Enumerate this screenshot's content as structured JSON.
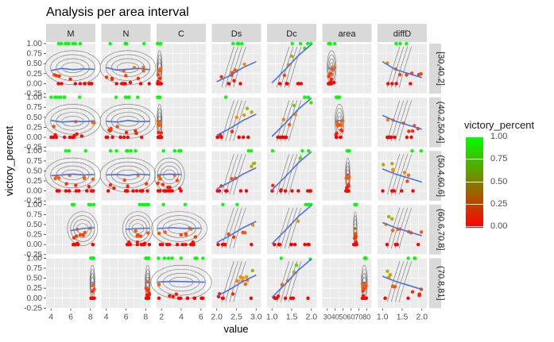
{
  "chart_data": {
    "type": "scatter",
    "title": "Analysis per area interval",
    "xlabel": "value",
    "ylabel": "victory_percent",
    "columns": [
      "M",
      "N",
      "C",
      "Ds",
      "Dc",
      "area",
      "diffD"
    ],
    "rows": [
      "[30,40.2]",
      "(40.2,50.4]",
      "(50.4,60.6]",
      "(60.6,70.8]",
      "(70.8,81]"
    ],
    "ylim": [
      -0.25,
      1.0
    ],
    "y_ticks": [
      "1.00",
      "0.75",
      "0.50",
      "0.25",
      "0.00",
      "-0.25"
    ],
    "x_axes": [
      {
        "column": "M",
        "ticks": [
          "4",
          "6",
          "8"
        ]
      },
      {
        "column": "N",
        "ticks": [
          "4",
          "6",
          "8"
        ]
      },
      {
        "column": "C",
        "ticks": [
          "2",
          "4",
          "6"
        ]
      },
      {
        "column": "Ds",
        "ticks": [
          "2.0",
          "2.5",
          "3.0"
        ]
      },
      {
        "column": "Dc",
        "ticks": [
          "1.0",
          "1.5",
          "2.0"
        ]
      },
      {
        "column": "area",
        "ticks": [
          "30",
          "40",
          "50",
          "60",
          "70",
          "80"
        ]
      },
      {
        "column": "diffD",
        "ticks": [
          "1.0",
          "1.5",
          "2.0"
        ]
      }
    ],
    "panels": [
      {
        "row": "[30,40.2]",
        "column": "M",
        "x_min": 4,
        "x_max": 9,
        "trend": [
          0.33,
          0.38,
          0.35,
          0.37,
          0.36
        ]
      },
      {
        "row": "[30,40.2]",
        "column": "N",
        "x_min": 4,
        "x_max": 9,
        "trend": [
          0.4,
          0.34,
          0.36,
          0.38,
          0.35
        ]
      },
      {
        "row": "[30,40.2]",
        "column": "C",
        "x_min": 1,
        "x_max": 2,
        "trend": []
      },
      {
        "row": "[30,40.2]",
        "column": "Ds",
        "x_min": 2.0,
        "x_max": 3.0,
        "trend": [
          0.05,
          0.2,
          0.4,
          0.55
        ]
      },
      {
        "row": "[30,40.2]",
        "column": "Dc",
        "x_min": 1.0,
        "x_max": 2.0,
        "trend": [
          0.02,
          0.35,
          0.7,
          0.98
        ]
      },
      {
        "row": "[30,40.2]",
        "column": "area",
        "x_min": 31,
        "x_max": 40,
        "trend": [
          0.4,
          0.36,
          0.38
        ]
      },
      {
        "row": "[30,40.2]",
        "column": "diffD",
        "x_min": 1.0,
        "x_max": 2.0,
        "trend": [
          0.55,
          0.35,
          0.25,
          0.15
        ]
      },
      {
        "row": "(40.2,50.4]",
        "column": "M",
        "x_min": 4,
        "x_max": 9,
        "trend": [
          0.42,
          0.38,
          0.4,
          0.39,
          0.41
        ]
      },
      {
        "row": "(40.2,50.4]",
        "column": "N",
        "x_min": 4,
        "x_max": 9,
        "trend": [
          0.4,
          0.38,
          0.42,
          0.39,
          0.4
        ]
      },
      {
        "row": "(40.2,50.4]",
        "column": "C",
        "x_min": 1,
        "x_max": 2,
        "trend": [
          0.4,
          0.42
        ]
      },
      {
        "row": "(40.2,50.4]",
        "column": "Ds",
        "x_min": 2.0,
        "x_max": 3.0,
        "trend": [
          0.05,
          0.22,
          0.42,
          0.58
        ]
      },
      {
        "row": "(40.2,50.4]",
        "column": "Dc",
        "x_min": 1.0,
        "x_max": 2.0,
        "trend": [
          0.02,
          0.35,
          0.7,
          0.98
        ]
      },
      {
        "row": "(40.2,50.4]",
        "column": "area",
        "x_min": 41,
        "x_max": 50,
        "trend": [
          0.4,
          0.42,
          0.4
        ]
      },
      {
        "row": "(40.2,50.4]",
        "column": "diffD",
        "x_min": 1.0,
        "x_max": 2.0,
        "trend": [
          0.55,
          0.4,
          0.3,
          0.2
        ]
      },
      {
        "row": "(50.4,60.6]",
        "column": "M",
        "x_min": 4,
        "x_max": 9,
        "trend": [
          0.38,
          0.4,
          0.42,
          0.4,
          0.41
        ]
      },
      {
        "row": "(50.4,60.6]",
        "column": "N",
        "x_min": 4,
        "x_max": 9,
        "trend": [
          0.4,
          0.41,
          0.39,
          0.42,
          0.4
        ]
      },
      {
        "row": "(50.4,60.6]",
        "column": "C",
        "x_min": 1,
        "x_max": 4,
        "trend": [
          0.4,
          0.42,
          0.41
        ]
      },
      {
        "row": "(50.4,60.6]",
        "column": "Ds",
        "x_min": 2.0,
        "x_max": 3.0,
        "trend": [
          0.05,
          0.22,
          0.42,
          0.58
        ]
      },
      {
        "row": "(50.4,60.6]",
        "column": "Dc",
        "x_min": 1.0,
        "x_max": 2.0,
        "trend": [
          0.02,
          0.35,
          0.7,
          0.98
        ]
      },
      {
        "row": "(50.4,60.6]",
        "column": "area",
        "x_min": 55,
        "x_max": 57,
        "trend": [
          0.4,
          0.41
        ]
      },
      {
        "row": "(50.4,60.6]",
        "column": "diffD",
        "x_min": 1.0,
        "x_max": 2.0,
        "trend": [
          0.55,
          0.42,
          0.32,
          0.22
        ]
      },
      {
        "row": "(60.6,70.8]",
        "column": "M",
        "x_min": 6,
        "x_max": 9,
        "trend": [
          0.35,
          0.4,
          0.42
        ]
      },
      {
        "row": "(60.6,70.8]",
        "column": "N",
        "x_min": 6,
        "x_max": 9,
        "trend": [
          0.38,
          0.4,
          0.41
        ]
      },
      {
        "row": "(60.6,70.8]",
        "column": "C",
        "x_min": 1,
        "x_max": 6,
        "trend": [
          0.4,
          0.42,
          0.4,
          0.41
        ]
      },
      {
        "row": "(60.6,70.8]",
        "column": "Ds",
        "x_min": 2.0,
        "x_max": 3.0,
        "trend": [
          0.05,
          0.22,
          0.42,
          0.58
        ]
      },
      {
        "row": "(60.6,70.8]",
        "column": "Dc",
        "x_min": 1.0,
        "x_max": 2.0,
        "trend": [
          0.02,
          0.35,
          0.7,
          0.98
        ]
      },
      {
        "row": "(60.6,70.8]",
        "column": "area",
        "x_min": 65,
        "x_max": 66,
        "trend": [
          0.4,
          0.41
        ]
      },
      {
        "row": "(60.6,70.8]",
        "column": "diffD",
        "x_min": 1.0,
        "x_max": 2.0,
        "trend": [
          0.55,
          0.42,
          0.32,
          0.22
        ]
      },
      {
        "row": "(70.8,81]",
        "column": "M",
        "x_min": 8,
        "x_max": 9,
        "trend": [
          0.38,
          0.4
        ]
      },
      {
        "row": "(70.8,81]",
        "column": "N",
        "x_min": 8,
        "x_max": 9,
        "trend": [
          0.38,
          0.4
        ]
      },
      {
        "row": "(70.8,81]",
        "column": "C",
        "x_min": 1,
        "x_max": 7,
        "trend": [
          0.4,
          0.42,
          0.41,
          0.4
        ]
      },
      {
        "row": "(70.8,81]",
        "column": "Ds",
        "x_min": 2.0,
        "x_max": 3.0,
        "trend": [
          0.05,
          0.22,
          0.42,
          0.58
        ]
      },
      {
        "row": "(70.8,81]",
        "column": "Dc",
        "x_min": 1.0,
        "x_max": 2.0,
        "trend": [
          0.02,
          0.35,
          0.7,
          0.98
        ]
      },
      {
        "row": "(70.8,81]",
        "column": "area",
        "x_min": 74,
        "x_max": 80,
        "trend": [
          0.4,
          0.38,
          0.41
        ]
      },
      {
        "row": "(70.8,81]",
        "column": "diffD",
        "x_min": 1.0,
        "x_max": 2.0,
        "trend": [
          0.55,
          0.42,
          0.32,
          0.22
        ]
      }
    ],
    "legend": {
      "title": "victory_percent",
      "ticks": [
        "1.00",
        "0.75",
        "0.50",
        "0.25",
        "0.00"
      ],
      "placement": "right",
      "colors": {
        "high": "#00ff00",
        "low": "#ff0000",
        "mid": "#ff8c00"
      }
    },
    "colors": {
      "panel_bg": "#ebebeb",
      "strip_bg": "#d9d9d9",
      "grid": "#ffffff",
      "trend": "#4f6fe0",
      "contour": "#707070"
    },
    "grid": true
  }
}
